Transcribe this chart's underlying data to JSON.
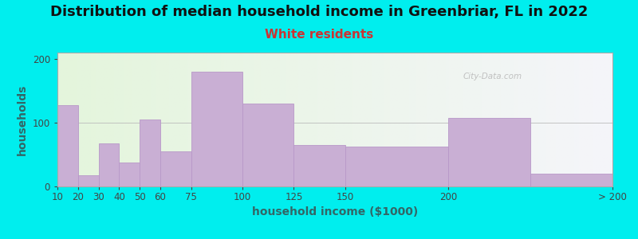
{
  "title": "Distribution of median household income in Greenbriar, FL in 2022",
  "subtitle": "White residents",
  "xlabel": "household income ($1000)",
  "ylabel": "households",
  "bg_outer": "#00EEEE",
  "bar_color": "#c9afd4",
  "bar_edge_color": "#b898c8",
  "watermark": "City-Data.com",
  "bin_edges": [
    10,
    20,
    30,
    40,
    50,
    60,
    75,
    100,
    125,
    150,
    200,
    240,
    280
  ],
  "tick_positions": [
    10,
    20,
    30,
    40,
    50,
    60,
    75,
    100,
    125,
    150,
    200,
    280
  ],
  "tick_labels": [
    "10",
    "20",
    "30",
    "40",
    "50",
    "60",
    "75",
    "100",
    "125",
    "150",
    "200",
    "> 200"
  ],
  "values": [
    128,
    18,
    68,
    38,
    105,
    55,
    180,
    130,
    65,
    63,
    108,
    20
  ],
  "ylim": [
    0,
    210
  ],
  "yticks": [
    0,
    100,
    200
  ],
  "title_fontsize": 13,
  "subtitle_fontsize": 11,
  "axis_label_fontsize": 10,
  "tick_fontsize": 8.5,
  "subtitle_color": "#cc3333",
  "title_color": "#111111",
  "ylabel_color": "#336666",
  "xlabel_color": "#336666"
}
